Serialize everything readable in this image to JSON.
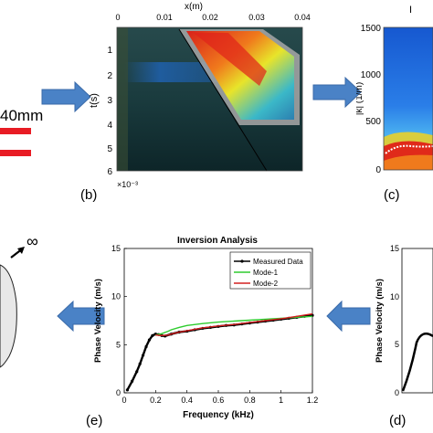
{
  "panel_labels": {
    "b": "(b)",
    "c": "(c)",
    "d": "(d)",
    "e": "(e)"
  },
  "panel_a": {
    "dimension_label": "40mm"
  },
  "panel_b": {
    "x_axis_label": "x(m)",
    "x_ticks": [
      "0",
      "0.01",
      "0.02",
      "0.03",
      "0.04"
    ],
    "y_axis_label": "t(s)",
    "y_ticks": [
      "1",
      "2",
      "3",
      "4",
      "5",
      "6"
    ],
    "y_multiplier": "×10⁻³",
    "colors": {
      "background": "#0e2a30",
      "hot": "#e0221a",
      "mid": "#e8e42a",
      "cool": "#2fb2c8",
      "mask": "#a6a6a6"
    }
  },
  "panel_c": {
    "y_axis_label": "|k| (1/m)",
    "y_ticks": [
      "0",
      "500",
      "1000",
      "1500"
    ],
    "partial_title": "I",
    "colors": {
      "field": "#1e6ee0",
      "band": "#e02a1a",
      "ridge": "#ffffff"
    }
  },
  "panel_d": {
    "y_axis_label": "Phase Velocity (m/s)",
    "y_ticks": [
      "0",
      "5",
      "10",
      "15"
    ]
  },
  "panel_e_infinity": {
    "symbol": "∞"
  },
  "chart_data": {
    "type": "line",
    "title": "Inversion Analysis",
    "xlabel": "Frequency (kHz)",
    "ylabel": "Phase Velocity (m/s)",
    "xlim": [
      0,
      1.2
    ],
    "ylim": [
      0,
      15
    ],
    "x_ticks": [
      "0",
      "0.2",
      "0.4",
      "0.6",
      "0.8",
      "1",
      "1.2"
    ],
    "y_ticks": [
      "0",
      "5",
      "10",
      "15"
    ],
    "grid": false,
    "legend_position": "top-right",
    "series": [
      {
        "name": "Measured Data",
        "color": "#000000",
        "x": [
          0.02,
          0.05,
          0.08,
          0.1,
          0.12,
          0.14,
          0.16,
          0.18,
          0.2,
          0.22,
          0.24,
          0.26,
          0.3,
          0.35,
          0.4,
          0.45,
          0.5,
          0.55,
          0.6,
          0.65,
          0.7,
          0.75,
          0.8,
          0.85,
          0.9,
          0.95,
          1.0,
          1.05,
          1.1,
          1.15,
          1.2
        ],
        "y": [
          0.3,
          1.2,
          2.2,
          3.0,
          3.9,
          4.8,
          5.5,
          5.95,
          6.1,
          6.05,
          5.95,
          5.9,
          6.1,
          6.3,
          6.4,
          6.55,
          6.7,
          6.8,
          6.9,
          7.0,
          7.05,
          7.15,
          7.25,
          7.35,
          7.45,
          7.55,
          7.65,
          7.75,
          7.85,
          7.95,
          8.05
        ]
      },
      {
        "name": "Mode-1",
        "color": "#2ecc2e",
        "x": [
          0.2,
          0.24,
          0.28,
          0.3,
          0.35,
          0.4,
          0.5,
          0.6,
          0.7,
          0.8,
          0.9,
          1.0,
          1.1,
          1.2
        ],
        "y": [
          6.0,
          6.15,
          6.4,
          6.55,
          6.8,
          7.0,
          7.2,
          7.35,
          7.45,
          7.55,
          7.65,
          7.75,
          7.85,
          7.95
        ]
      },
      {
        "name": "Mode-2",
        "color": "#d42020",
        "x": [
          0.2,
          0.24,
          0.28,
          0.3,
          0.35,
          0.4,
          0.5,
          0.6,
          0.7,
          0.8,
          0.9,
          1.0,
          1.1,
          1.2
        ],
        "y": [
          6.0,
          5.95,
          6.0,
          6.1,
          6.3,
          6.45,
          6.75,
          6.95,
          7.1,
          7.3,
          7.5,
          7.7,
          7.95,
          8.2
        ]
      }
    ]
  }
}
